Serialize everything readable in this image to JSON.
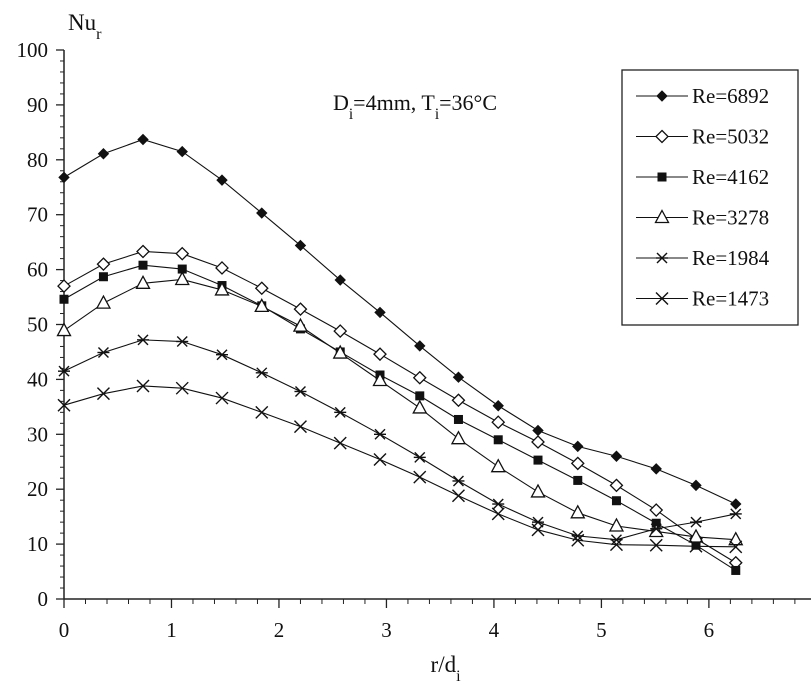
{
  "chart_data": {
    "type": "line",
    "ylabel": "Nu_r",
    "xlabel": "r/d_i",
    "annotation": "D_i=4mm, T_i=36°C",
    "xlim": [
      0,
      7
    ],
    "ylim": [
      0,
      100
    ],
    "x_ticks": [
      "0",
      "1",
      "2",
      "3",
      "4",
      "5",
      "6",
      "7"
    ],
    "y_ticks": [
      "0",
      "10",
      "20",
      "30",
      "40",
      "50",
      "60",
      "70",
      "80",
      "90",
      "100"
    ],
    "grid": false,
    "legend_position": "top-right",
    "x": [
      0,
      0.367,
      0.735,
      1.1,
      1.47,
      1.84,
      2.2,
      2.57,
      2.94,
      3.31,
      3.67,
      4.04,
      4.41,
      4.78,
      5.14,
      5.51,
      5.88,
      6.25
    ],
    "series": [
      {
        "name": "Re=6892",
        "marker": "diamond-filled",
        "values": [
          76.8,
          81.1,
          83.7,
          81.5,
          76.3,
          70.3,
          64.4,
          58.1,
          52.2,
          46.1,
          40.4,
          35.2,
          30.7,
          27.8,
          26.0,
          23.7,
          20.7,
          17.3
        ]
      },
      {
        "name": "Re=5032",
        "marker": "diamond-open",
        "values": [
          57.0,
          61.0,
          63.3,
          62.9,
          60.3,
          56.6,
          52.8,
          48.8,
          44.6,
          40.3,
          36.2,
          32.2,
          28.6,
          24.7,
          20.7,
          16.2,
          11.0,
          6.6
        ]
      },
      {
        "name": "Re=4162",
        "marker": "square-filled",
        "values": [
          54.6,
          58.7,
          60.8,
          60.1,
          57.1,
          53.4,
          49.2,
          45.0,
          40.8,
          37.0,
          32.7,
          29.0,
          25.3,
          21.6,
          17.9,
          13.8,
          9.8,
          5.2
        ]
      },
      {
        "name": "Re=3278",
        "marker": "triangle-open",
        "values": [
          48.9,
          53.9,
          57.5,
          58.2,
          56.3,
          53.3,
          49.7,
          44.8,
          39.8,
          34.8,
          29.2,
          24.1,
          19.5,
          15.7,
          13.3,
          12.3,
          11.3,
          10.8
        ]
      },
      {
        "name": "Re=1984",
        "marker": "asterisk",
        "values": [
          41.5,
          44.9,
          47.2,
          46.9,
          44.5,
          41.2,
          37.8,
          34.0,
          30.0,
          25.8,
          21.5,
          17.3,
          14.0,
          11.5,
          10.8,
          12.8,
          14.0,
          15.5
        ]
      },
      {
        "name": "Re=1473",
        "marker": "cross",
        "values": [
          35.3,
          37.4,
          38.8,
          38.4,
          36.6,
          34.0,
          31.4,
          28.4,
          25.4,
          22.2,
          18.8,
          15.5,
          12.6,
          10.7,
          9.9,
          9.8,
          9.6,
          9.5
        ]
      }
    ]
  }
}
